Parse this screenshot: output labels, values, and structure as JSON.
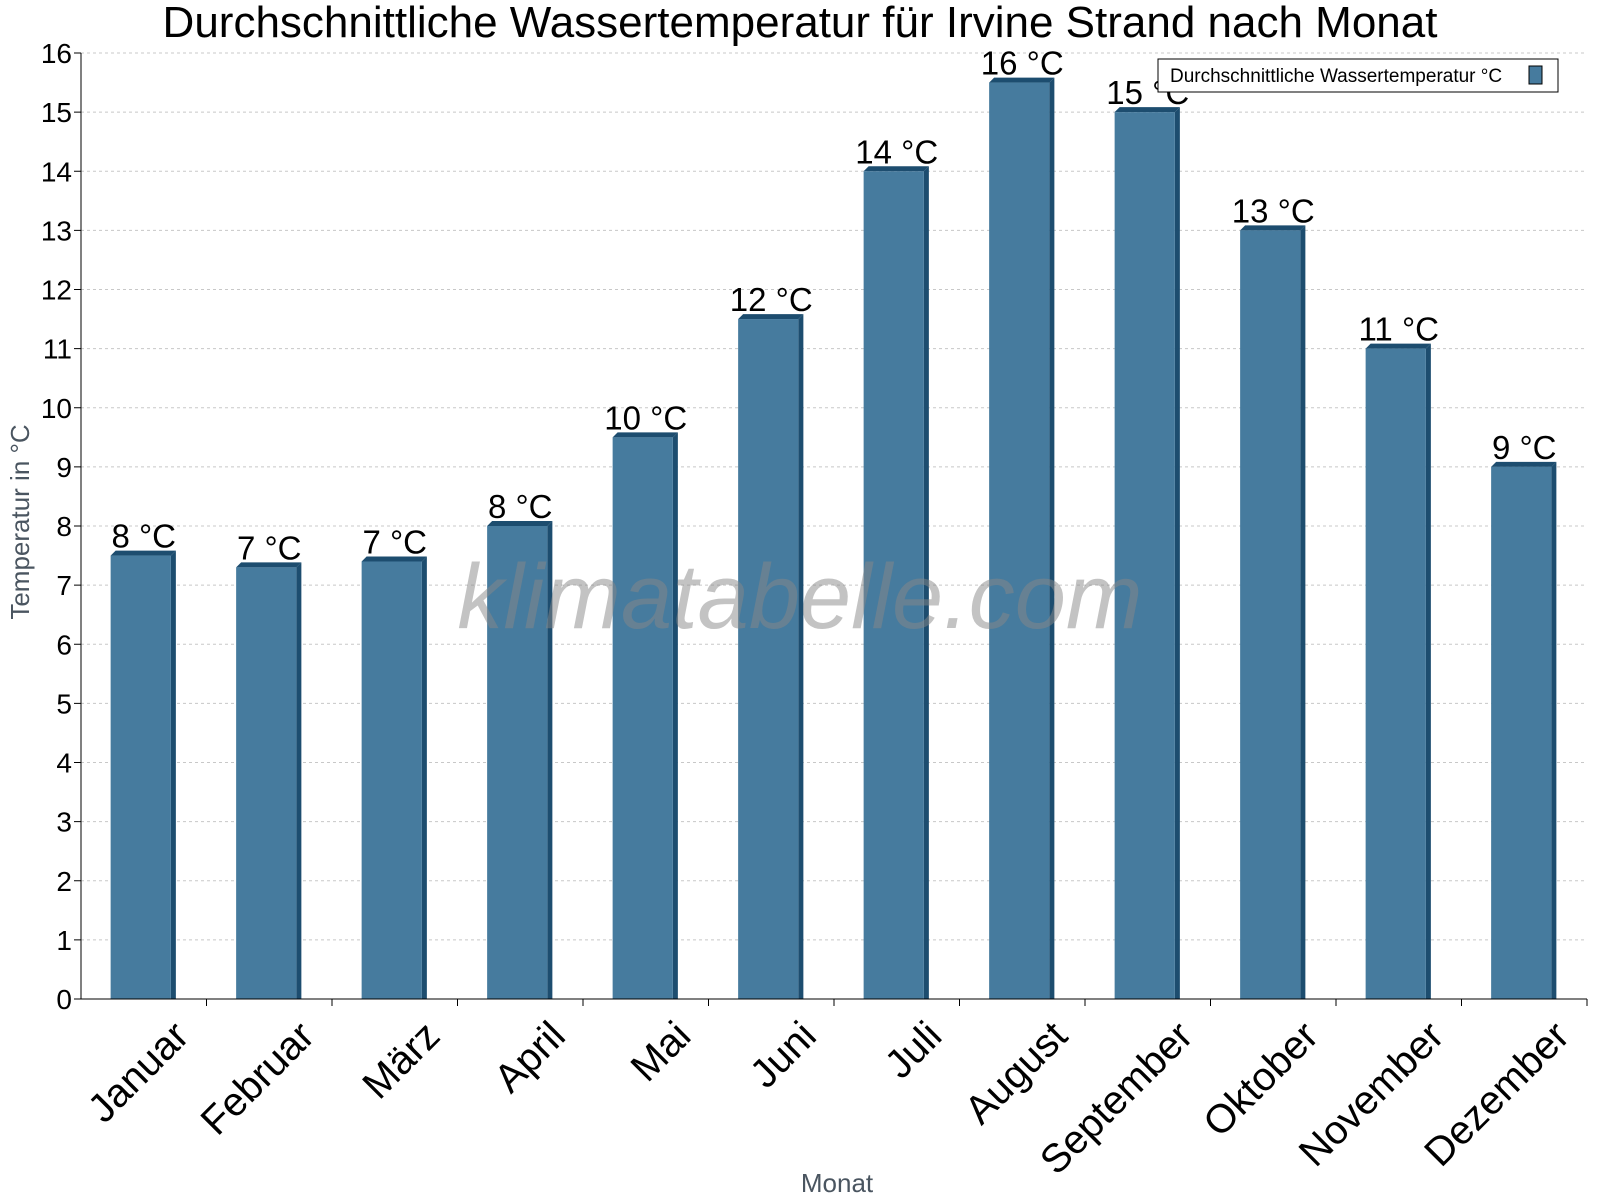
{
  "chart_data": {
    "type": "bar",
    "title": "Durchschnittliche Wassertemperatur für Irvine Strand nach Monat",
    "xlabel": "Monat",
    "ylabel": "Temperatur in °C",
    "categories": [
      "Januar",
      "Februar",
      "März",
      "April",
      "Mai",
      "Juni",
      "Juli",
      "August",
      "September",
      "Oktober",
      "November",
      "Dezember"
    ],
    "series": [
      {
        "name": "Durchschnittliche Wassertemperatur °C",
        "values": [
          7.5,
          7.3,
          7.4,
          8.0,
          9.5,
          11.5,
          14.0,
          15.5,
          15.0,
          13.0,
          11.0,
          9.0
        ],
        "data_labels": [
          "8 °C",
          "7 °C",
          "7 °C",
          "8 °C",
          "10 °C",
          "12 °C",
          "14 °C",
          "16 °C",
          "15 °C",
          "13 °C",
          "11 °C",
          "9 °C"
        ]
      }
    ],
    "ylim": [
      0,
      16
    ],
    "yticks": [
      0,
      1,
      2,
      3,
      4,
      5,
      6,
      7,
      8,
      9,
      10,
      11,
      12,
      13,
      14,
      15,
      16
    ],
    "grid": true,
    "legend_position": "top-right",
    "colors": {
      "bar": "#467b9e",
      "bar_side": "#1d4d6f",
      "grid": "#c8c8c8"
    },
    "watermark": "klimatabelle.com"
  }
}
